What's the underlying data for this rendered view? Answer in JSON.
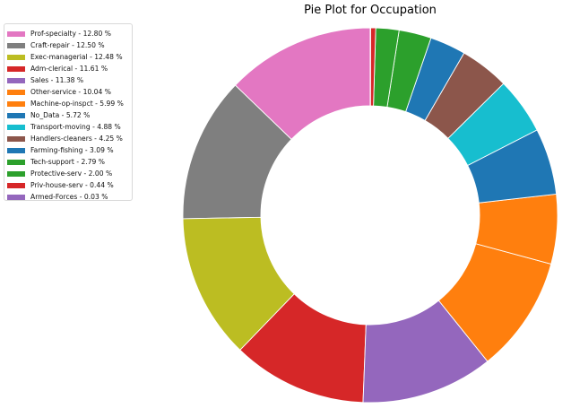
{
  "chart_data": {
    "type": "pie",
    "title": "Pie Plot for Occupation",
    "donut": true,
    "legend_position": "top-left",
    "categories": [
      "Prof-specialty",
      "Craft-repair",
      "Exec-managerial",
      "Adm-clerical",
      "Sales",
      "Other-service",
      "Machine-op-inspct",
      "No_Data",
      "Transport-moving",
      "Handlers-cleaners",
      "Farming-fishing",
      "Tech-support",
      "Protective-serv",
      "Priv-house-serv",
      "Armed-Forces"
    ],
    "values": [
      12.8,
      12.5,
      12.48,
      11.61,
      11.38,
      10.04,
      5.99,
      5.72,
      4.88,
      4.25,
      3.09,
      2.79,
      2.0,
      0.44,
      0.03
    ],
    "legend_labels": [
      "Prof-specialty - 12.80 %",
      "Craft-repair - 12.50 %",
      "Exec-managerial - 12.48 %",
      "Adm-clerical - 11.61 %",
      "Sales - 11.38 %",
      "Other-service - 10.04 %",
      "Machine-op-inspct - 5.99 %",
      "No_Data - 5.72 %",
      "Transport-moving - 4.88 %",
      "Handlers-cleaners - 4.25 %",
      "Farming-fishing - 3.09 %",
      "Tech-support - 2.79 %",
      "Protective-serv - 2.00 %",
      "Priv-house-serv - 0.44 %",
      "Armed-Forces - 0.03 %"
    ],
    "colors": [
      "#e377c2",
      "#7f7f7f",
      "#bcbd22",
      "#d62728",
      "#9467bd",
      "#ff7f0e",
      "#ff7f0e",
      "#1f77b4",
      "#17becf",
      "#8c564b",
      "#1f77b4",
      "#2ca02c",
      "#2ca02c",
      "#d62728",
      "#9467bd"
    ]
  }
}
